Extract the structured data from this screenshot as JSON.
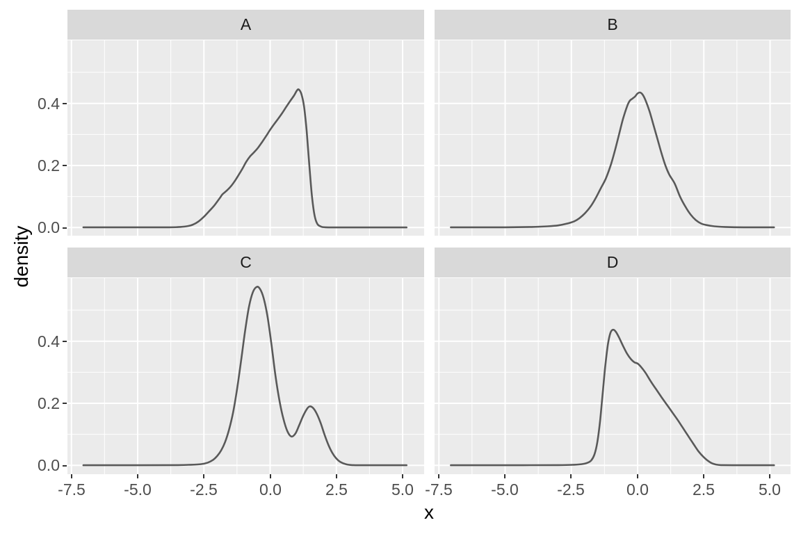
{
  "chart_data": {
    "type": "line",
    "subtype": "faceted-density-plot",
    "xlabel": "x",
    "ylabel": "density",
    "x_tick_labels": [
      "-7.5",
      "-5.0",
      "-2.5",
      "0.0",
      "2.5",
      "5.0"
    ],
    "x_tick_values": [
      -7.5,
      -5.0,
      -2.5,
      0.0,
      2.5,
      5.0
    ],
    "y_tick_labels": [
      "0.0",
      "0.2",
      "0.4"
    ],
    "y_tick_values": [
      0.0,
      0.2,
      0.4
    ],
    "xlim": [
      -7.65,
      5.78
    ],
    "ylim": [
      -0.03,
      0.6
    ],
    "grid": "white major and minor gridlines on grey panel",
    "legend": "none",
    "line_color": "#595959",
    "panel_bg": "#ebebeb",
    "strip_bg": "#d9d9d9",
    "facets": [
      {
        "label": "A",
        "peak": {
          "x": 1.05,
          "density": 0.445
        },
        "points": [
          [
            -7.05,
            0.001
          ],
          [
            -5.0,
            0.001
          ],
          [
            -3.8,
            0.001
          ],
          [
            -3.4,
            0.002
          ],
          [
            -3.1,
            0.005
          ],
          [
            -2.9,
            0.01
          ],
          [
            -2.7,
            0.02
          ],
          [
            -2.5,
            0.035
          ],
          [
            -2.3,
            0.053
          ],
          [
            -2.1,
            0.072
          ],
          [
            -1.9,
            0.095
          ],
          [
            -1.8,
            0.107
          ],
          [
            -1.65,
            0.118
          ],
          [
            -1.5,
            0.131
          ],
          [
            -1.35,
            0.148
          ],
          [
            -1.2,
            0.168
          ],
          [
            -1.05,
            0.189
          ],
          [
            -0.9,
            0.212
          ],
          [
            -0.75,
            0.23
          ],
          [
            -0.6,
            0.243
          ],
          [
            -0.45,
            0.258
          ],
          [
            -0.3,
            0.276
          ],
          [
            -0.15,
            0.295
          ],
          [
            0.0,
            0.315
          ],
          [
            0.15,
            0.333
          ],
          [
            0.3,
            0.35
          ],
          [
            0.45,
            0.368
          ],
          [
            0.6,
            0.388
          ],
          [
            0.75,
            0.407
          ],
          [
            0.9,
            0.425
          ],
          [
            1.0,
            0.44
          ],
          [
            1.08,
            0.445
          ],
          [
            1.18,
            0.43
          ],
          [
            1.28,
            0.39
          ],
          [
            1.38,
            0.31
          ],
          [
            1.48,
            0.2
          ],
          [
            1.58,
            0.1
          ],
          [
            1.68,
            0.038
          ],
          [
            1.78,
            0.012
          ],
          [
            1.9,
            0.004
          ],
          [
            2.1,
            0.001
          ],
          [
            3.0,
            0.0005
          ],
          [
            5.15,
            0.0005
          ]
        ]
      },
      {
        "label": "B",
        "peak": {
          "x": 0.1,
          "density": 0.435
        },
        "points": [
          [
            -7.05,
            0.001
          ],
          [
            -5.0,
            0.001
          ],
          [
            -4.0,
            0.002
          ],
          [
            -3.4,
            0.004
          ],
          [
            -3.0,
            0.007
          ],
          [
            -2.7,
            0.012
          ],
          [
            -2.4,
            0.02
          ],
          [
            -2.2,
            0.03
          ],
          [
            -2.0,
            0.045
          ],
          [
            -1.8,
            0.065
          ],
          [
            -1.6,
            0.092
          ],
          [
            -1.4,
            0.125
          ],
          [
            -1.2,
            0.158
          ],
          [
            -1.0,
            0.205
          ],
          [
            -0.85,
            0.25
          ],
          [
            -0.7,
            0.3
          ],
          [
            -0.55,
            0.35
          ],
          [
            -0.4,
            0.39
          ],
          [
            -0.3,
            0.408
          ],
          [
            -0.2,
            0.415
          ],
          [
            -0.1,
            0.422
          ],
          [
            0.0,
            0.432
          ],
          [
            0.1,
            0.435
          ],
          [
            0.2,
            0.427
          ],
          [
            0.3,
            0.41
          ],
          [
            0.45,
            0.375
          ],
          [
            0.6,
            0.33
          ],
          [
            0.75,
            0.285
          ],
          [
            0.9,
            0.24
          ],
          [
            1.05,
            0.2
          ],
          [
            1.2,
            0.17
          ],
          [
            1.4,
            0.142
          ],
          [
            1.6,
            0.1
          ],
          [
            1.8,
            0.068
          ],
          [
            2.0,
            0.042
          ],
          [
            2.2,
            0.024
          ],
          [
            2.4,
            0.013
          ],
          [
            2.6,
            0.008
          ],
          [
            2.9,
            0.004
          ],
          [
            3.3,
            0.002
          ],
          [
            4.0,
            0.001
          ],
          [
            5.15,
            0.001
          ]
        ]
      },
      {
        "label": "C",
        "peak": {
          "x": -0.5,
          "density": 0.575
        },
        "second_peak": {
          "x": 1.5,
          "density": 0.19
        },
        "valley": {
          "x": 0.8,
          "density": 0.093
        },
        "points": [
          [
            -7.05,
            0.0005
          ],
          [
            -5.0,
            0.0005
          ],
          [
            -3.5,
            0.001
          ],
          [
            -3.0,
            0.002
          ],
          [
            -2.6,
            0.004
          ],
          [
            -2.35,
            0.009
          ],
          [
            -2.15,
            0.018
          ],
          [
            -2.0,
            0.03
          ],
          [
            -1.85,
            0.048
          ],
          [
            -1.7,
            0.075
          ],
          [
            -1.55,
            0.115
          ],
          [
            -1.4,
            0.17
          ],
          [
            -1.25,
            0.245
          ],
          [
            -1.1,
            0.335
          ],
          [
            -0.95,
            0.43
          ],
          [
            -0.8,
            0.51
          ],
          [
            -0.65,
            0.558
          ],
          [
            -0.5,
            0.575
          ],
          [
            -0.38,
            0.568
          ],
          [
            -0.25,
            0.54
          ],
          [
            -0.1,
            0.48
          ],
          [
            0.05,
            0.39
          ],
          [
            0.2,
            0.29
          ],
          [
            0.35,
            0.21
          ],
          [
            0.5,
            0.15
          ],
          [
            0.65,
            0.11
          ],
          [
            0.8,
            0.093
          ],
          [
            0.95,
            0.102
          ],
          [
            1.1,
            0.13
          ],
          [
            1.25,
            0.16
          ],
          [
            1.4,
            0.183
          ],
          [
            1.5,
            0.19
          ],
          [
            1.62,
            0.185
          ],
          [
            1.75,
            0.168
          ],
          [
            1.9,
            0.138
          ],
          [
            2.05,
            0.1
          ],
          [
            2.2,
            0.066
          ],
          [
            2.35,
            0.04
          ],
          [
            2.5,
            0.022
          ],
          [
            2.65,
            0.011
          ],
          [
            2.85,
            0.004
          ],
          [
            3.1,
            0.001
          ],
          [
            3.6,
            0.0005
          ],
          [
            5.15,
            0.0005
          ]
        ]
      },
      {
        "label": "D",
        "peak": {
          "x": -0.95,
          "density": 0.437
        },
        "shoulder": {
          "x": 0.0,
          "density": 0.328
        },
        "points": [
          [
            -7.05,
            0.0005
          ],
          [
            -5.0,
            0.0005
          ],
          [
            -3.0,
            0.001
          ],
          [
            -2.4,
            0.002
          ],
          [
            -2.1,
            0.004
          ],
          [
            -1.9,
            0.008
          ],
          [
            -1.75,
            0.016
          ],
          [
            -1.63,
            0.035
          ],
          [
            -1.52,
            0.075
          ],
          [
            -1.42,
            0.14
          ],
          [
            -1.32,
            0.23
          ],
          [
            -1.22,
            0.32
          ],
          [
            -1.12,
            0.39
          ],
          [
            -1.02,
            0.428
          ],
          [
            -0.92,
            0.437
          ],
          [
            -0.82,
            0.43
          ],
          [
            -0.7,
            0.412
          ],
          [
            -0.55,
            0.385
          ],
          [
            -0.4,
            0.36
          ],
          [
            -0.25,
            0.342
          ],
          [
            -0.12,
            0.332
          ],
          [
            0.0,
            0.328
          ],
          [
            0.12,
            0.318
          ],
          [
            0.3,
            0.298
          ],
          [
            0.5,
            0.27
          ],
          [
            0.7,
            0.245
          ],
          [
            0.9,
            0.22
          ],
          [
            1.1,
            0.196
          ],
          [
            1.3,
            0.172
          ],
          [
            1.5,
            0.148
          ],
          [
            1.7,
            0.122
          ],
          [
            1.9,
            0.096
          ],
          [
            2.1,
            0.07
          ],
          [
            2.3,
            0.045
          ],
          [
            2.5,
            0.026
          ],
          [
            2.65,
            0.015
          ],
          [
            2.8,
            0.007
          ],
          [
            2.95,
            0.003
          ],
          [
            3.15,
            0.001
          ],
          [
            3.6,
            0.0005
          ],
          [
            5.15,
            0.0005
          ]
        ]
      }
    ]
  }
}
